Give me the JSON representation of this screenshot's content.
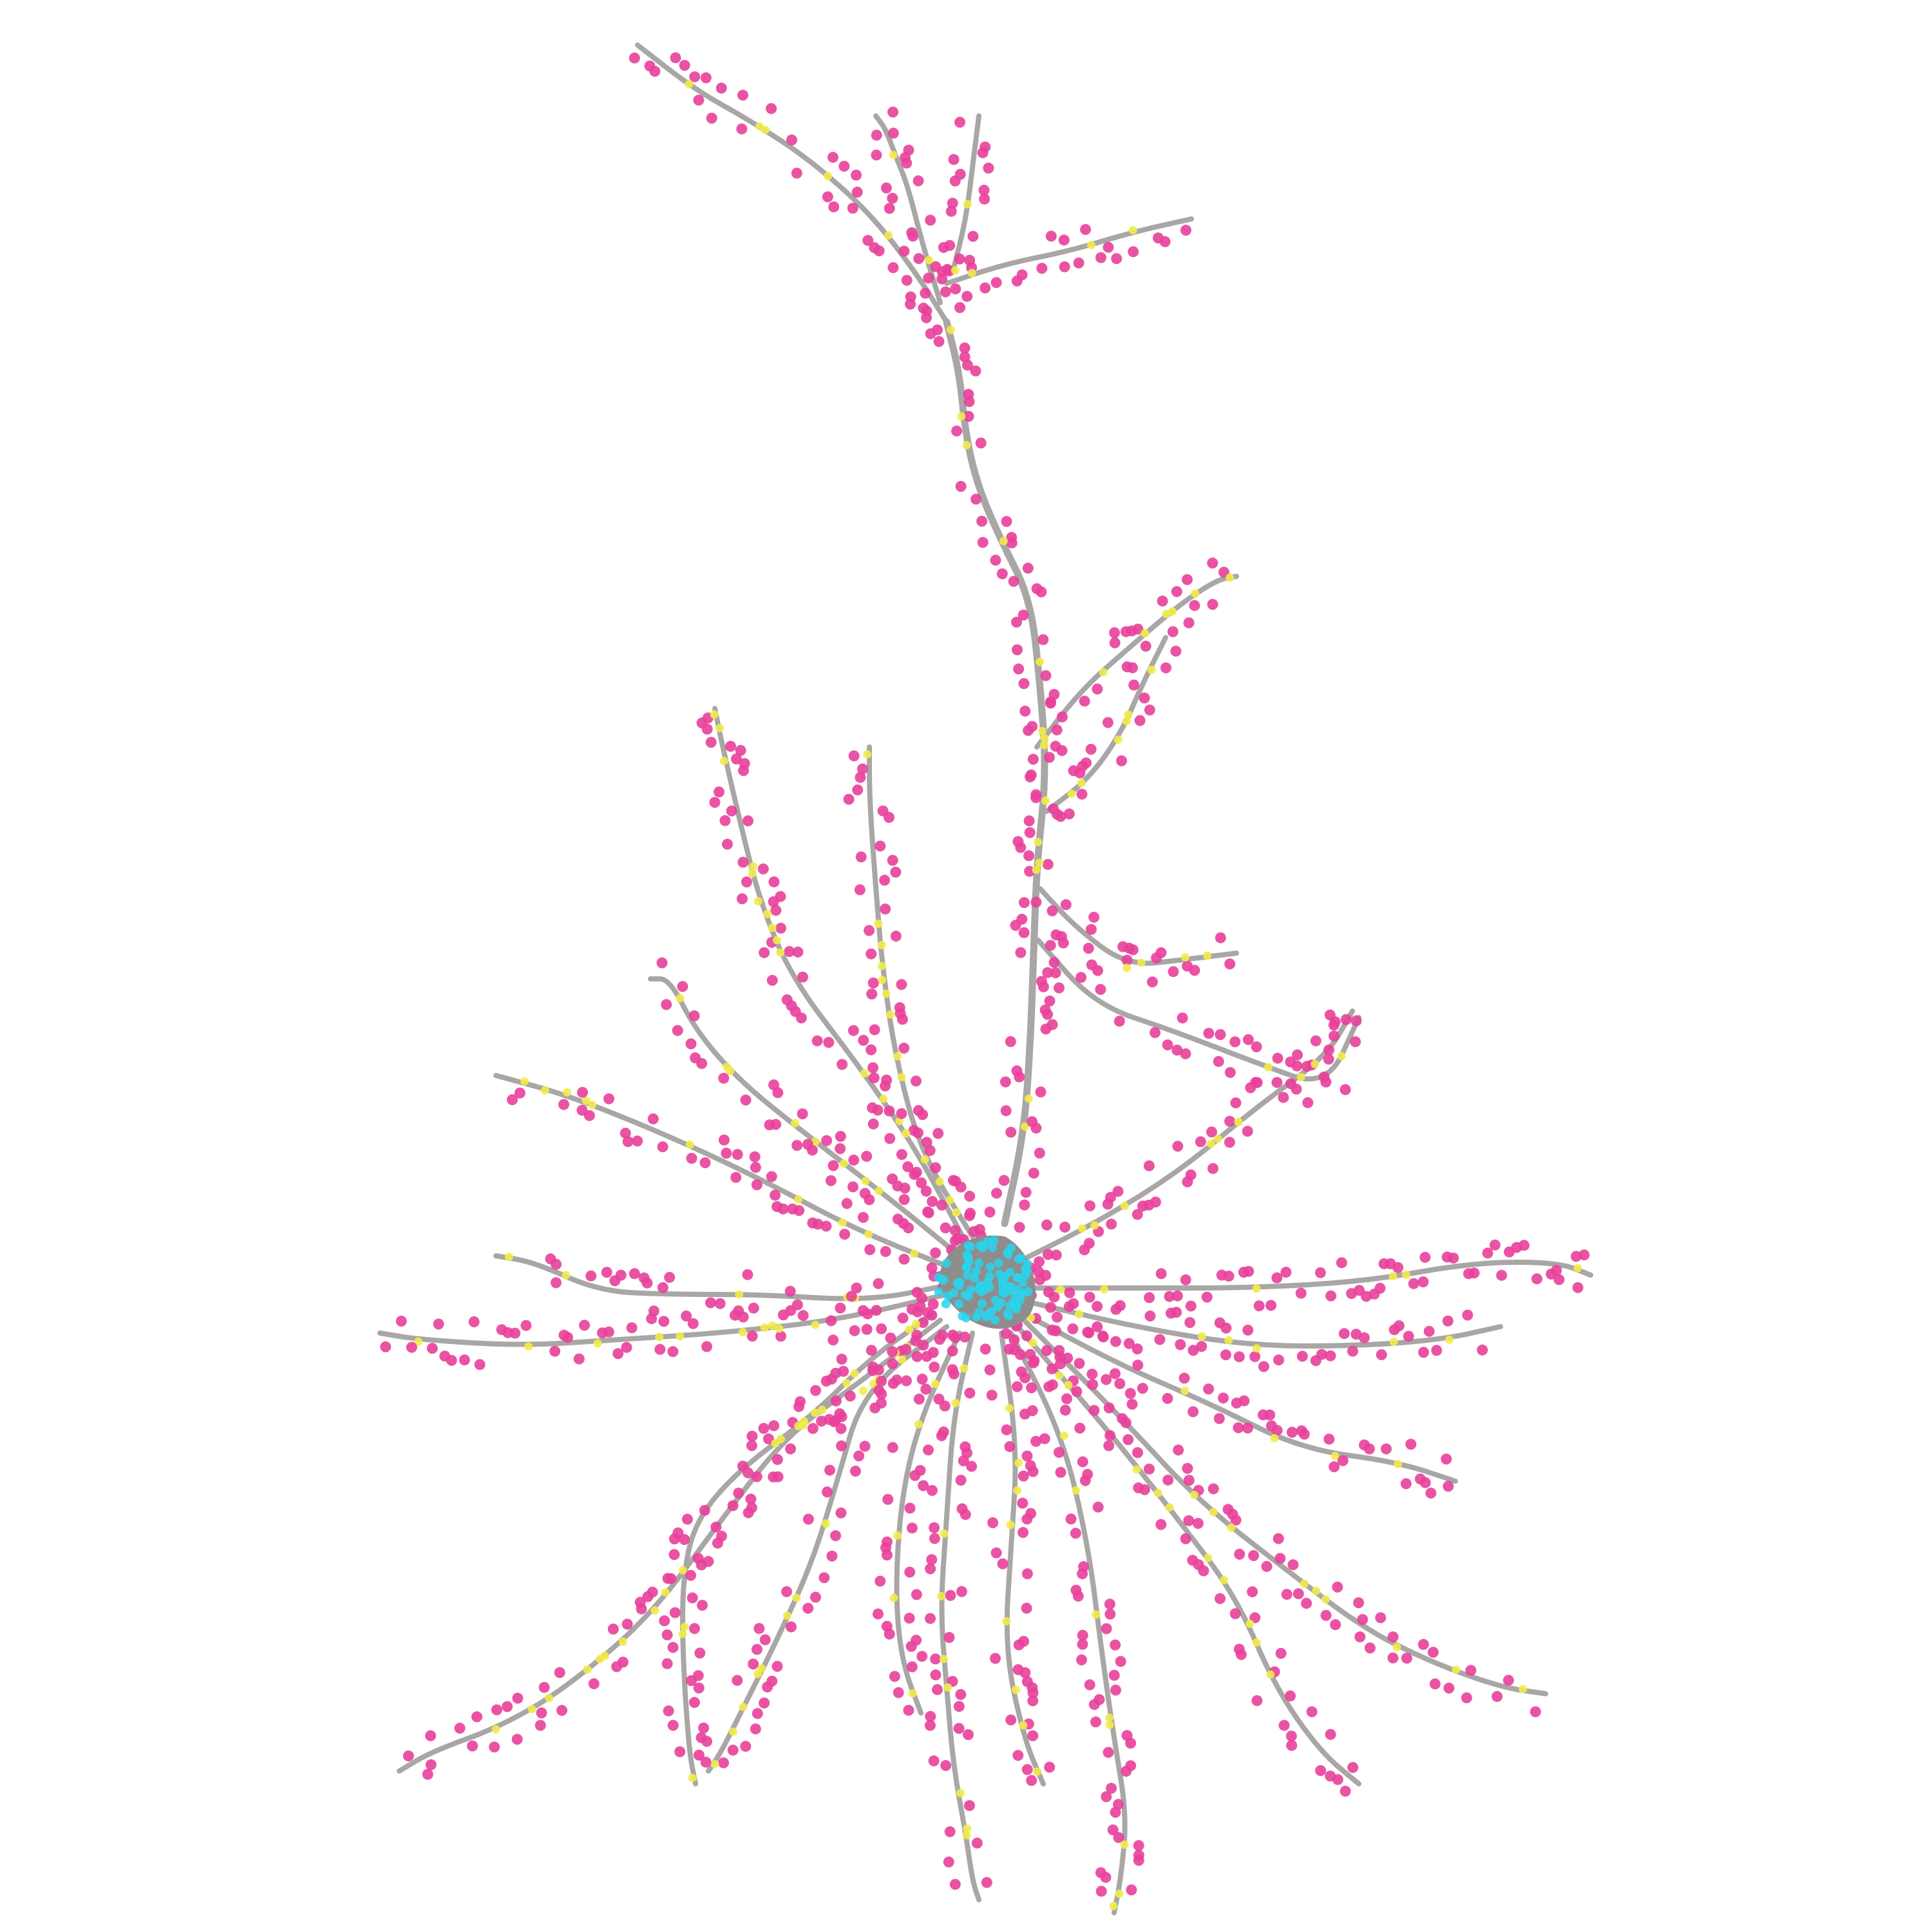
{
  "scene": {
    "subject": "neuron-reconstruction",
    "background_color": "#ffffff",
    "colors": {
      "dendrite": "#a9a6a6",
      "dendrite_dark": "#8e8b8b",
      "soma": "#8f8c8c",
      "excitatory_synapse": "#e8409a",
      "inhibitory_synapse": "#f2ec4a",
      "soma_synapse": "#2ad4ec"
    },
    "counts": {
      "branches": 28
    }
  }
}
